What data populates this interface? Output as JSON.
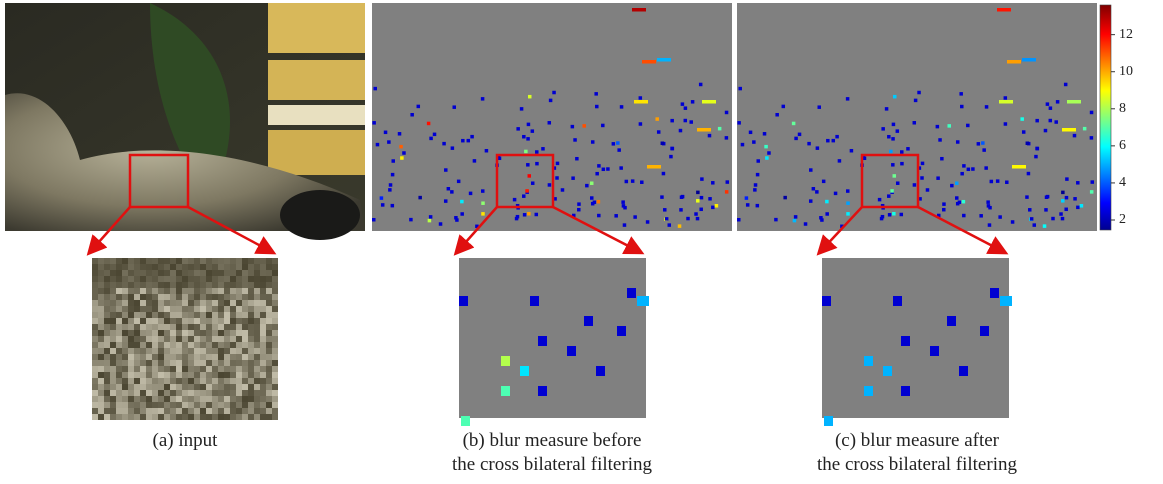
{
  "colorbar": {
    "min": 1.46,
    "max": 13.6,
    "ticks": [
      2,
      4,
      6,
      8,
      10,
      12
    ]
  },
  "captions": [
    {
      "lines": [
        "(a) input"
      ]
    },
    {
      "lines": [
        "(b) blur measure before",
        "the cross bilateral filtering"
      ]
    },
    {
      "lines": [
        "(c) blur measure after",
        "the cross bilateral filtering"
      ]
    }
  ]
}
